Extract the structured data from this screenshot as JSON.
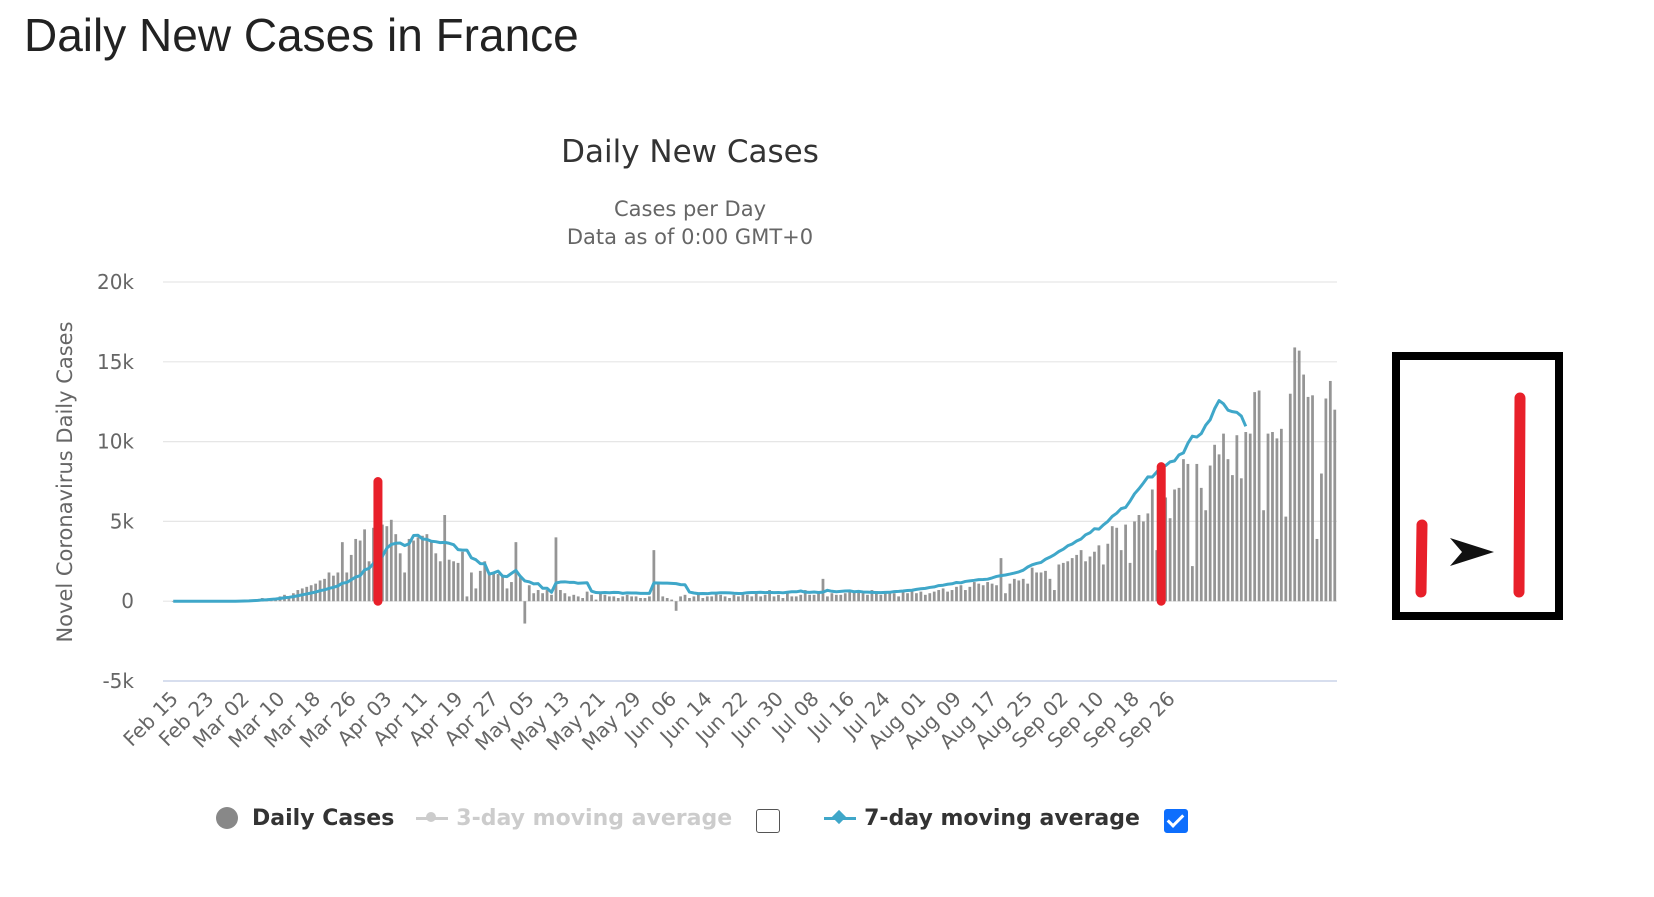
{
  "page_title": "Daily New Cases in France",
  "colors": {
    "bars": "#959595",
    "line": "#3fa7c9",
    "highlight": "#e8202a",
    "grid": "#e6e6e6",
    "checkbox": "#0d6efd"
  },
  "legend": {
    "daily_cases": {
      "label": "Daily Cases",
      "icon": "circle-marker"
    },
    "ma3": {
      "label": "3-day moving average",
      "checked": false,
      "icon": "line-marker"
    },
    "ma7": {
      "label": "7-day moving average",
      "checked": true,
      "icon": "line-marker"
    }
  },
  "inset": {
    "icon": "arrow-right-icon"
  },
  "chart_data": {
    "type": "bar",
    "title": "Daily New Cases",
    "subtitle_lines": [
      "Cases per Day",
      "Data as of 0:00 GMT+0"
    ],
    "ylabel": "Novel Coronavirus Daily Cases",
    "xlabel": "",
    "ylim": [
      -5000,
      20000
    ],
    "y_ticks": [
      -5000,
      0,
      5000,
      10000,
      15000,
      20000
    ],
    "y_tick_labels": [
      "-5k",
      "0",
      "5k",
      "10k",
      "15k",
      "20k"
    ],
    "x_start": "2020-02-15",
    "x_tick_labels": [
      "Feb 15",
      "Feb 23",
      "Mar 02",
      "Mar 10",
      "Mar 18",
      "Mar 26",
      "Apr 03",
      "Apr 11",
      "Apr 19",
      "Apr 27",
      "May 05",
      "May 13",
      "May 21",
      "May 29",
      "Jun 06",
      "Jun 14",
      "Jun 22",
      "Jun 30",
      "Jul 08",
      "Jul 16",
      "Jul 24",
      "Aug 01",
      "Aug 09",
      "Aug 17",
      "Aug 25",
      "Sep 02",
      "Sep 10",
      "Sep 18",
      "Sep 26"
    ],
    "grid": true,
    "legend_position": "bottom",
    "highlighted_bars": [
      "Apr 01",
      "Sep 24"
    ],
    "series": [
      {
        "name": "Daily Cases",
        "type": "bar",
        "values": [
          0,
          0,
          0,
          0,
          0,
          0,
          0,
          0,
          0,
          0,
          0,
          0,
          0,
          0,
          0,
          50,
          40,
          60,
          100,
          100,
          200,
          100,
          150,
          200,
          300,
          400,
          300,
          500,
          700,
          800,
          900,
          1000,
          1100,
          1300,
          1400,
          1800,
          1600,
          1800,
          3700,
          1800,
          2900,
          3900,
          3800,
          4500,
          2500,
          4600,
          7500,
          4800,
          4700,
          5100,
          4200,
          3000,
          1800,
          3900,
          3800,
          4000,
          4100,
          4200,
          3800,
          3000,
          2500,
          5400,
          2600,
          2500,
          2400,
          3100,
          300,
          1800,
          800,
          1900,
          2500,
          1700,
          1800,
          1700,
          1600,
          800,
          1200,
          3700,
          1500,
          -1400,
          1000,
          500,
          700,
          500,
          700,
          400,
          4000,
          700,
          500,
          300,
          400,
          300,
          200,
          600,
          400,
          100,
          500,
          400,
          300,
          300,
          200,
          300,
          400,
          300,
          300,
          200,
          200,
          300,
          3200,
          1200,
          300,
          200,
          100,
          -600,
          300,
          400,
          200,
          300,
          400,
          200,
          300,
          300,
          500,
          400,
          300,
          200,
          400,
          300,
          500,
          400,
          300,
          500,
          300,
          400,
          700,
          300,
          400,
          200,
          500,
          300,
          300,
          400,
          700,
          400,
          400,
          500,
          1400,
          300,
          500,
          400,
          400,
          500,
          600,
          600,
          700,
          500,
          400,
          700,
          500,
          400,
          600,
          500,
          500,
          300,
          600,
          500,
          700,
          500,
          600,
          400,
          500,
          600,
          700,
          800,
          600,
          700,
          900,
          1000,
          700,
          900,
          1200,
          1100,
          1000,
          1200,
          1100,
          1000,
          2700,
          500,
          1100,
          1400,
          1300,
          1400,
          1100,
          2100,
          1800,
          1800,
          1900,
          1400,
          700,
          2300,
          2400,
          2500,
          2700,
          2900,
          3200,
          2500,
          2800,
          3100,
          3500,
          2300,
          3600,
          4700,
          4600,
          3200,
          4800,
          2400,
          5000,
          5400,
          5000,
          5500,
          7000,
          3200,
          5200,
          6500,
          5200,
          7000,
          7100,
          8900,
          8600,
          2200,
          8600,
          7100,
          5700,
          8500,
          9800,
          9200,
          10500,
          8900,
          7900,
          10400,
          7700,
          10600,
          10500,
          13100,
          13200,
          5700,
          10500,
          10600,
          10200,
          10800,
          5300,
          13000,
          15900,
          15700,
          14200,
          12800,
          12900,
          3900,
          8000,
          12700,
          13800,
          12000
        ]
      },
      {
        "name": "7-day moving average",
        "type": "line",
        "values": [
          0,
          0,
          0,
          0,
          0,
          0,
          0,
          0,
          0,
          0,
          0,
          0,
          0,
          0,
          0,
          7,
          13,
          21,
          36,
          50,
          79,
          93,
          114,
          136,
          171,
          214,
          243,
          286,
          343,
          400,
          457,
          514,
          571,
          657,
          714,
          800,
          871,
          957,
          1129,
          1171,
          1343,
          1514,
          1600,
          1957,
          2057,
          2357,
          2714,
          2814,
          3329,
          3557,
          3629,
          3643,
          3486,
          3600,
          4114,
          4129,
          3900,
          3871,
          3757,
          3729,
          3671,
          3686,
          3629,
          3543,
          3229,
          3200,
          3200,
          2714,
          2600,
          2357,
          2343,
          1700,
          1771,
          1886,
          1571,
          1543,
          1743,
          1933,
          1557,
          1271,
          1214,
          1086,
          1100,
          814,
          814,
          557,
          1140,
          1200,
          1214,
          1183,
          1183,
          1123,
          1137,
          1157,
          629,
          543,
          529,
          543,
          529,
          553,
          549,
          492,
          525,
          516,
          512,
          488,
          492,
          487,
          1146,
          1140,
          1136,
          1132,
          1119,
          1100,
          1040,
          1032,
          573,
          514,
          474,
          486,
          471,
          509,
          506,
          533,
          531,
          519,
          496,
          483,
          494,
          533,
          546,
          546,
          560,
          534,
          552,
          537,
          549,
          526,
          561,
          589,
          589,
          640,
          566,
          550,
          573,
          546,
          571,
          683,
          621,
          590,
          613,
          636,
          650,
          593,
          613,
          580,
          566,
          555,
          544,
          537,
          553,
          557,
          603,
          614,
          637,
          670,
          686,
          740,
          779,
          803,
          863,
          896,
          976,
          1001,
          1061,
          1092,
          1175,
          1152,
          1238,
          1276,
          1308,
          1350,
          1361,
          1379,
          1461,
          1550,
          1600,
          1643,
          1700,
          1764,
          1836,
          1943,
          2143,
          2279,
          2364,
          2429,
          2629,
          2760,
          2914,
          3114,
          3257,
          3471,
          3586,
          3771,
          3900,
          4160,
          4286,
          4543,
          4514,
          4780,
          5000,
          5314,
          5514,
          5800,
          5874,
          6271,
          6729,
          7046,
          7406,
          7790,
          7783,
          8097,
          8429,
          8500,
          8729,
          8791,
          9170,
          9290,
          9900,
          10341,
          10286,
          10500,
          11029,
          11369,
          12057,
          12570,
          12366,
          11970,
          11876,
          11830,
          11600,
          10957
        ]
      }
    ]
  }
}
